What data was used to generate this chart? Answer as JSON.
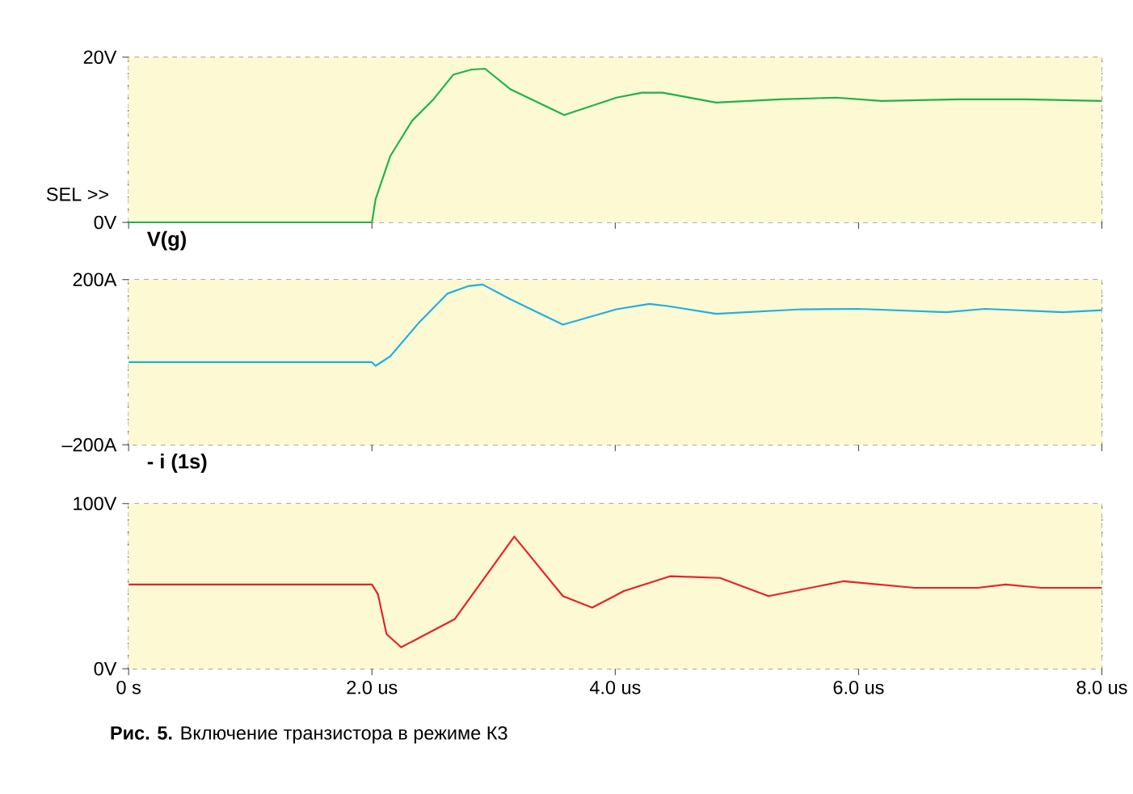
{
  "chart_data": [
    {
      "type": "line",
      "xlabel": "V(g)",
      "xlim": [
        0,
        8
      ],
      "xticks": [
        {
          "value": 0,
          "label": null
        },
        {
          "value": 2,
          "label": null
        },
        {
          "value": 4,
          "label": null
        },
        {
          "value": 6,
          "label": null
        },
        {
          "value": 8,
          "label": null
        }
      ],
      "ylim": [
        0,
        20
      ],
      "yticks": [
        {
          "value": 0,
          "label": "0V"
        },
        {
          "value": 20,
          "label": "20V"
        }
      ],
      "tick_labels": "y",
      "grid": "x",
      "annotations": [
        "SEL >>"
      ],
      "series": [
        {
          "color": "#1db34a",
          "x": [
            0,
            2.0,
            2.03,
            2.15,
            2.33,
            2.5,
            2.67,
            2.82,
            2.93,
            3.14,
            3.58,
            4.01,
            4.22,
            4.39,
            4.83,
            5.35,
            5.82,
            6.19,
            6.81,
            7.39,
            8.0
          ],
          "values": [
            0,
            0,
            2.8,
            8.0,
            12.3,
            14.8,
            17.9,
            18.5,
            18.6,
            16.1,
            13.0,
            15.1,
            15.7,
            15.7,
            14.5,
            14.9,
            15.1,
            14.7,
            14.9,
            14.9,
            14.7
          ]
        }
      ]
    },
    {
      "type": "line",
      "xlabel": "- i (1s)",
      "xlim": [
        0,
        8
      ],
      "xticks": [
        {
          "value": 0,
          "label": null
        },
        {
          "value": 2,
          "label": null
        },
        {
          "value": 4,
          "label": null
        },
        {
          "value": 6,
          "label": null
        },
        {
          "value": 8,
          "label": null
        }
      ],
      "ylim": [
        -200,
        200
      ],
      "yticks": [
        {
          "value": -200,
          "label": "–200A"
        },
        {
          "value": 200,
          "label": "200A"
        }
      ],
      "tick_labels": "y",
      "grid": "x",
      "series": [
        {
          "color": "#1fb0e0",
          "x": [
            0,
            2.0,
            2.03,
            2.15,
            2.39,
            2.62,
            2.79,
            2.91,
            3.14,
            3.57,
            4.01,
            4.28,
            4.43,
            4.83,
            5.53,
            6.0,
            6.72,
            7.04,
            7.68,
            8.0
          ],
          "values": [
            0,
            0,
            -9,
            14,
            97,
            166,
            184,
            188,
            152,
            91,
            128,
            141,
            136,
            117,
            128,
            129,
            121,
            129,
            121,
            126
          ]
        }
      ]
    },
    {
      "type": "line",
      "xlim": [
        0,
        8
      ],
      "xticks": [
        {
          "value": 0,
          "label": "0 s"
        },
        {
          "value": 2,
          "label": "2.0 us"
        },
        {
          "value": 4,
          "label": "4.0 us"
        },
        {
          "value": 6,
          "label": "6.0 us"
        },
        {
          "value": 8,
          "label": "8.0 us"
        }
      ],
      "ylim": [
        0,
        100
      ],
      "yticks": [
        {
          "value": 0,
          "label": "0V"
        },
        {
          "value": 100,
          "label": "100V"
        }
      ],
      "grid": "x",
      "annotations": [
        "**Рис. 5.** Включение транзистора в режиме К3"
      ],
      "series": [
        {
          "color": "#e8202a",
          "x": [
            0,
            2.0,
            2.05,
            2.12,
            2.24,
            2.68,
            3.17,
            3.57,
            3.81,
            4.07,
            4.45,
            4.86,
            5.26,
            5.88,
            6.46,
            6.98,
            7.21,
            7.5,
            8.0
          ],
          "values": [
            51,
            51,
            45,
            21,
            13,
            30,
            80,
            44,
            37,
            47,
            56,
            55,
            44,
            53,
            49,
            49,
            51,
            49,
            49
          ]
        }
      ]
    }
  ]
}
